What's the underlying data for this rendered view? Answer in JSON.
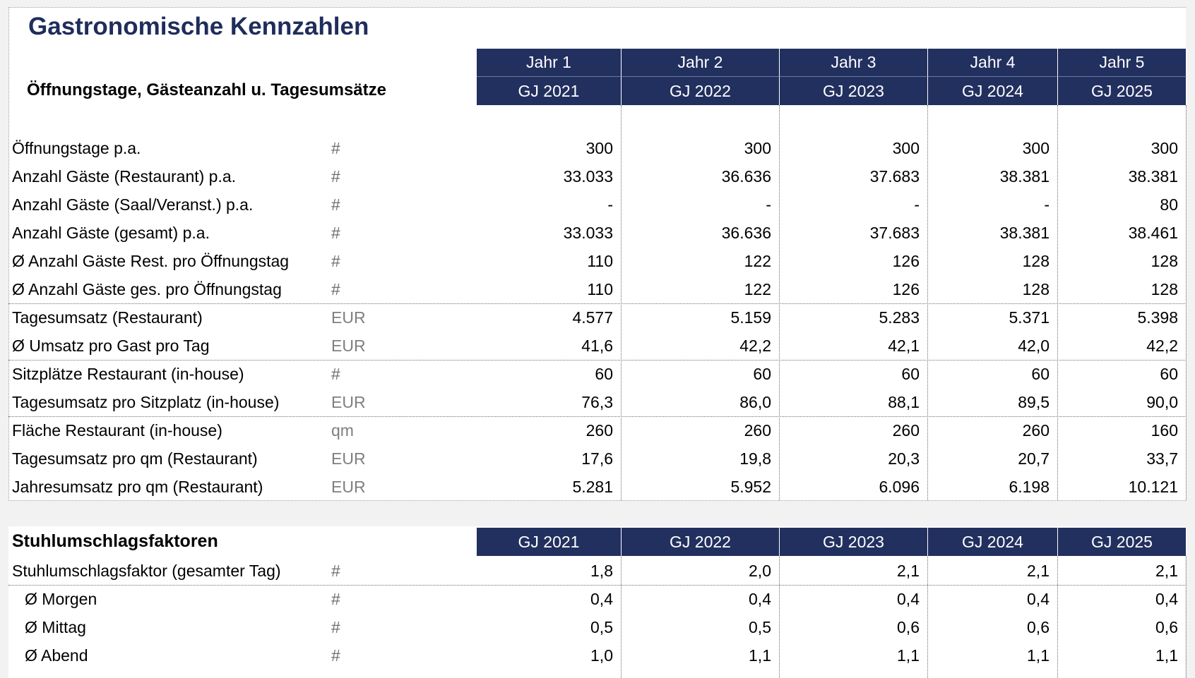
{
  "title": "Gastronomische Kennzahlen",
  "subtitle": "Öffnungstage, Gästeanzahl u. Tagesumsätze",
  "years": [
    "Jahr 1",
    "Jahr 2",
    "Jahr 3",
    "Jahr 4",
    "Jahr 5"
  ],
  "fiscal_years": [
    "GJ 2021",
    "GJ 2022",
    "GJ 2023",
    "GJ 2024",
    "GJ 2025"
  ],
  "colors": {
    "header_bg": "#22305f",
    "title": "#1f2d5c"
  },
  "rows": [
    {
      "label": "Öffnungstage p.a.",
      "unit": "#",
      "values": [
        "300",
        "300",
        "300",
        "300",
        "300"
      ]
    },
    {
      "label": "Anzahl Gäste (Restaurant) p.a.",
      "unit": "#",
      "values": [
        "33.033",
        "36.636",
        "37.683",
        "38.381",
        "38.381"
      ]
    },
    {
      "label": "Anzahl Gäste (Saal/Veranst.) p.a.",
      "unit": "#",
      "values": [
        "-",
        "-",
        "-",
        "-",
        "80"
      ]
    },
    {
      "label": "Anzahl Gäste (gesamt) p.a.",
      "unit": "#",
      "values": [
        "33.033",
        "36.636",
        "37.683",
        "38.381",
        "38.461"
      ]
    },
    {
      "label": "Ø Anzahl Gäste Rest. pro Öffnungstag",
      "unit": "#",
      "values": [
        "110",
        "122",
        "126",
        "128",
        "128"
      ]
    },
    {
      "label": "Ø Anzahl Gäste ges. pro Öffnungstag",
      "unit": "#",
      "values": [
        "110",
        "122",
        "126",
        "128",
        "128"
      ]
    },
    {
      "label": "Tagesumsatz (Restaurant)",
      "unit": "EUR",
      "values": [
        "4.577",
        "5.159",
        "5.283",
        "5.371",
        "5.398"
      ]
    },
    {
      "label": "Ø Umsatz pro Gast pro Tag",
      "unit": "EUR",
      "values": [
        "41,6",
        "42,2",
        "42,1",
        "42,0",
        "42,2"
      ]
    },
    {
      "label": "Sitzplätze Restaurant (in-house)",
      "unit": "#",
      "values": [
        "60",
        "60",
        "60",
        "60",
        "60"
      ]
    },
    {
      "label": "Tagesumsatz pro Sitzplatz (in-house)",
      "unit": "EUR",
      "values": [
        "76,3",
        "86,0",
        "88,1",
        "89,5",
        "90,0"
      ]
    },
    {
      "label": "Fläche Restaurant (in-house)",
      "unit": "qm",
      "values": [
        "260",
        "260",
        "260",
        "260",
        "160"
      ]
    },
    {
      "label": "Tagesumsatz pro qm (Restaurant)",
      "unit": "EUR",
      "values": [
        "17,6",
        "19,8",
        "20,3",
        "20,7",
        "33,7"
      ]
    },
    {
      "label": "Jahresumsatz pro qm (Restaurant)",
      "unit": "EUR",
      "values": [
        "5.281",
        "5.952",
        "6.096",
        "6.198",
        "10.121"
      ]
    }
  ],
  "section2": {
    "title": "Stuhlumschlagsfaktoren",
    "fiscal_years": [
      "GJ 2021",
      "GJ 2022",
      "GJ 2023",
      "GJ 2024",
      "GJ 2025"
    ],
    "rows": [
      {
        "label": "Stuhlumschlagsfaktor (gesamter Tag)",
        "unit": "#",
        "indent": false,
        "values": [
          "1,8",
          "2,0",
          "2,1",
          "2,1",
          "2,1"
        ]
      },
      {
        "label": "Ø Morgen",
        "unit": "#",
        "indent": true,
        "values": [
          "0,4",
          "0,4",
          "0,4",
          "0,4",
          "0,4"
        ]
      },
      {
        "label": "Ø Mittag",
        "unit": "#",
        "indent": true,
        "values": [
          "0,5",
          "0,5",
          "0,6",
          "0,6",
          "0,6"
        ]
      },
      {
        "label": "Ø Abend",
        "unit": "#",
        "indent": true,
        "values": [
          "1,0",
          "1,1",
          "1,1",
          "1,1",
          "1,1"
        ]
      }
    ]
  }
}
